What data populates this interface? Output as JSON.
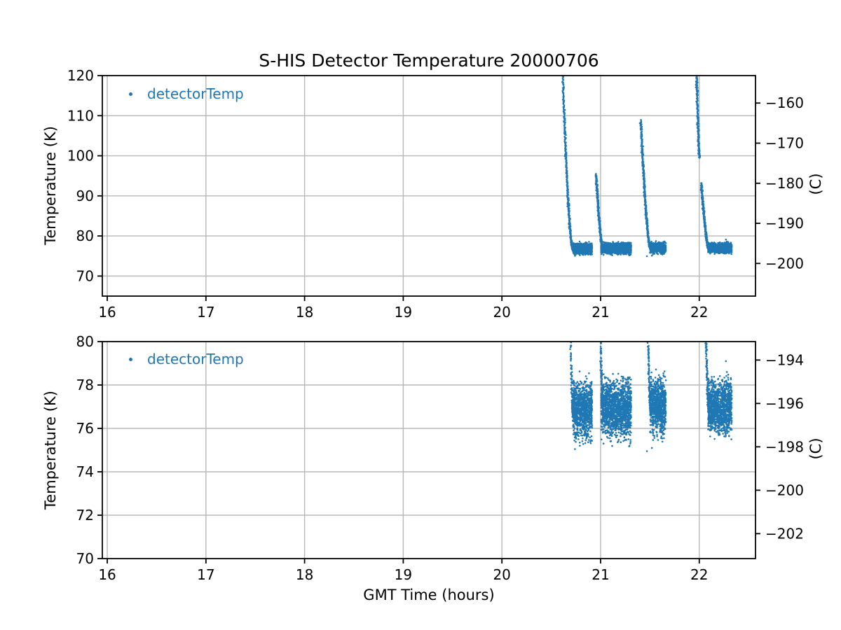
{
  "chart_data": {
    "type": "scatter",
    "title": "S-HIS Detector Temperature 20000706",
    "xlabel": "GMT Time (hours)",
    "legend_label": "detectorTemp",
    "point_color": "#1f77b4",
    "grid_color": "#b8b8b8",
    "axis_color": "#000000",
    "xlim": [
      15.95,
      22.57
    ],
    "x_ticks": [
      {
        "v": 16,
        "label": "16"
      },
      {
        "v": 17,
        "label": "17"
      },
      {
        "v": 18,
        "label": "18"
      },
      {
        "v": 19,
        "label": "19"
      },
      {
        "v": 20,
        "label": "20"
      },
      {
        "v": 21,
        "label": "21"
      },
      {
        "v": 22,
        "label": "22"
      }
    ],
    "panels": [
      {
        "id": "top",
        "ylabel": "Temperature (K)",
        "right_label": "(C)",
        "ylim": [
          65,
          120
        ],
        "y_ticks": [
          {
            "v": 70,
            "label": "70"
          },
          {
            "v": 80,
            "label": "80"
          },
          {
            "v": 90,
            "label": "90"
          },
          {
            "v": 100,
            "label": "100"
          },
          {
            "v": 110,
            "label": "110"
          },
          {
            "v": 120,
            "label": "120"
          }
        ],
        "right_ticks": [
          {
            "v": 113.15,
            "label": "−160"
          },
          {
            "v": 103.15,
            "label": "−170"
          },
          {
            "v": 93.15,
            "label": "−180"
          },
          {
            "v": 83.15,
            "label": "−190"
          },
          {
            "v": 73.15,
            "label": "−200"
          }
        ]
      },
      {
        "id": "bottom",
        "ylabel": "Temperature (K)",
        "right_label": "(C)",
        "ylim": [
          70,
          80
        ],
        "y_ticks": [
          {
            "v": 70,
            "label": "70"
          },
          {
            "v": 72,
            "label": "72"
          },
          {
            "v": 74,
            "label": "74"
          },
          {
            "v": 76,
            "label": "76"
          },
          {
            "v": 78,
            "label": "78"
          },
          {
            "v": 80,
            "label": "80"
          }
        ],
        "right_ticks": [
          {
            "v": 79.15,
            "label": "−194"
          },
          {
            "v": 77.15,
            "label": "−196"
          },
          {
            "v": 75.15,
            "label": "−198"
          },
          {
            "v": 73.15,
            "label": "−200"
          },
          {
            "v": 71.15,
            "label": "−202"
          }
        ]
      }
    ],
    "events": [
      {
        "cooldown_segments": [
          {
            "x0": 20.595,
            "t0": 137.0,
            "x1": 20.72,
            "t1": 76.6,
            "curve": 1.7,
            "n": 500
          }
        ],
        "plateau": {
          "x0": 20.72,
          "x1": 20.915,
          "mean": 76.85,
          "sd": 0.62,
          "n": 950
        },
        "outliers": [
          [
            20.74,
            75.05
          ],
          [
            20.79,
            75.2
          ]
        ]
      },
      {
        "cooldown_segments": [
          {
            "x0": 20.955,
            "t0": 95.3,
            "x1": 21.022,
            "t1": 76.9,
            "curve": 1.5,
            "n": 350
          }
        ],
        "plateau": {
          "x0": 21.005,
          "x1": 21.31,
          "mean": 76.9,
          "sd": 0.62,
          "n": 1450
        },
        "outliers": [
          [
            21.03,
            75.3
          ],
          [
            21.1,
            75.4
          ]
        ]
      },
      {
        "cooldown_segments": [
          {
            "x0": 21.408,
            "t0": 108.8,
            "x1": 21.505,
            "t1": 77.0,
            "curve": 1.6,
            "n": 420
          }
        ],
        "plateau": {
          "x0": 21.498,
          "x1": 21.662,
          "mean": 77.0,
          "sd": 0.6,
          "n": 820
        },
        "outliers": [
          [
            21.47,
            74.95
          ],
          [
            21.52,
            75.1
          ]
        ]
      },
      {
        "cooldown_segments": [
          {
            "x0": 21.955,
            "t0": 137.0,
            "x1": 22.001,
            "t1": 99.5,
            "curve": 1.2,
            "n": 320
          },
          {
            "x0": 22.02,
            "t0": 93.2,
            "x1": 22.095,
            "t1": 77.0,
            "curve": 1.5,
            "n": 360
          }
        ],
        "plateau": {
          "x0": 22.09,
          "x1": 22.33,
          "mean": 77.0,
          "sd": 0.6,
          "n": 1150
        },
        "outliers": [
          [
            22.27,
            79.1
          ]
        ]
      }
    ]
  }
}
